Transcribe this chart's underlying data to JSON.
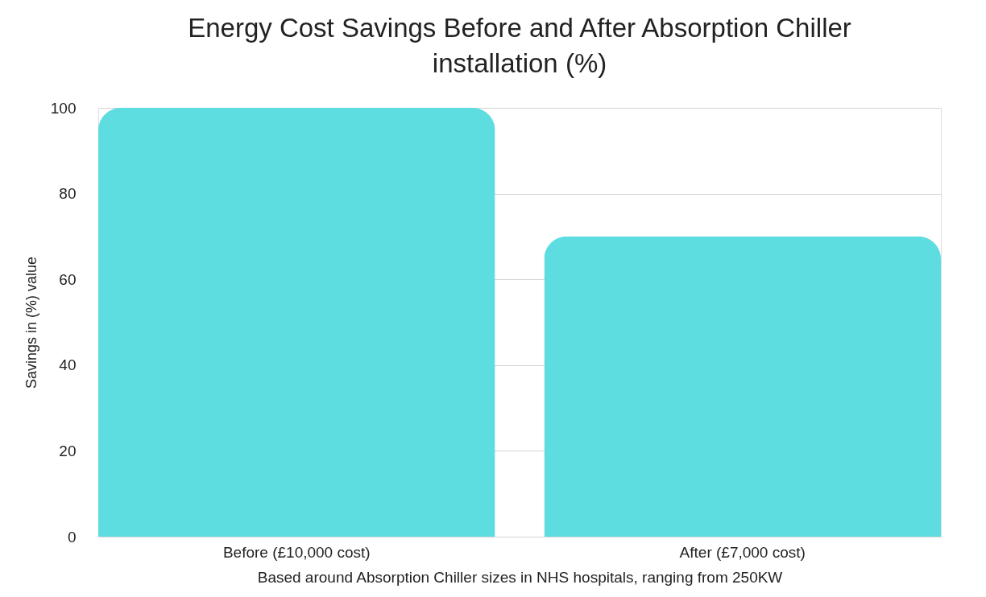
{
  "chart_data": {
    "type": "bar",
    "title": [
      "Energy Cost Savings Before and After Absorption Chiller",
      "installation (%)"
    ],
    "xlabel": "Based around Absorption Chiller sizes in NHS hospitals, ranging from 250KW",
    "ylabel": "Savings in (%) value",
    "categories": [
      "Before (£10,000 cost)",
      "After (£7,000 cost)"
    ],
    "values": [
      100,
      70
    ],
    "color": "#5ddde0",
    "ylim": [
      0,
      100
    ],
    "yticks": [
      0,
      20,
      40,
      60,
      80,
      100
    ],
    "grid": "y"
  }
}
